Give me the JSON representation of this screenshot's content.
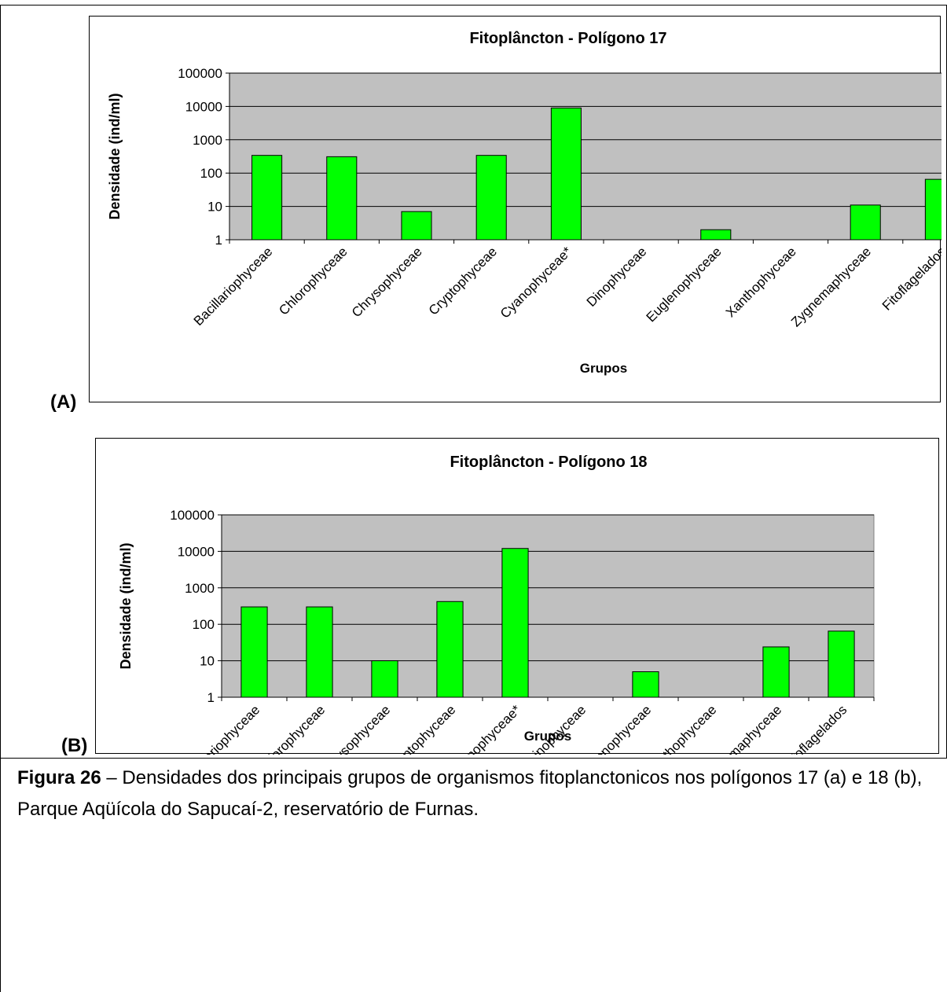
{
  "chart_data": [
    {
      "type": "bar",
      "title": "Fitoplâncton - Polígono 17",
      "xlabel": "Grupos",
      "ylabel": "Densidade (ind/ml)",
      "yscale": "log",
      "ylim": [
        1,
        100000
      ],
      "yticks": [
        "1",
        "10",
        "100",
        "1000",
        "10000",
        "100000"
      ],
      "grid": true,
      "categories": [
        "Bacillariophyceae",
        "Chlorophyceae",
        "Chrysophyceae",
        "Cryptophyceae",
        "Cyanophyceae*",
        "Dinophyceae",
        "Euglenophyceae",
        "Xanthophyceae",
        "Zygnemaphyceae",
        "Fitoflagelados"
      ],
      "values": [
        340,
        310,
        7,
        340,
        9000,
        0,
        2,
        0,
        11,
        65
      ],
      "bar_color": "#00ff00",
      "plot_bg": "#c0c0c0",
      "panel_label": "(A)"
    },
    {
      "type": "bar",
      "title": "Fitoplâncton - Polígono 18",
      "xlabel": "Grupos",
      "ylabel": "Densidade (ind/ml)",
      "yscale": "log",
      "ylim": [
        1,
        100000
      ],
      "yticks": [
        "1",
        "10",
        "100",
        "1000",
        "10000",
        "100000"
      ],
      "grid": true,
      "categories": [
        "Bacillariophyceae",
        "Chlorophyceae",
        "Chrysophyceae",
        "Cryptophyceae",
        "Cyanophyceae*",
        "Dinophyceae",
        "Euglenophyceae",
        "Xanthophyceae",
        "Zygnemaphyceae",
        "Fitoflagelados"
      ],
      "values": [
        300,
        300,
        10,
        420,
        12000,
        0,
        5,
        0,
        24,
        65
      ],
      "bar_color": "#00ff00",
      "plot_bg": "#c0c0c0",
      "panel_label": "(B)"
    }
  ],
  "caption": {
    "label": "Figura 26",
    "text": " – Densidades dos principais grupos de organismos fitoplanctonicos nos polígonos 17 (a) e 18 (b), Parque Aqüícola do Sapucaí-2, reservatório de Furnas."
  }
}
